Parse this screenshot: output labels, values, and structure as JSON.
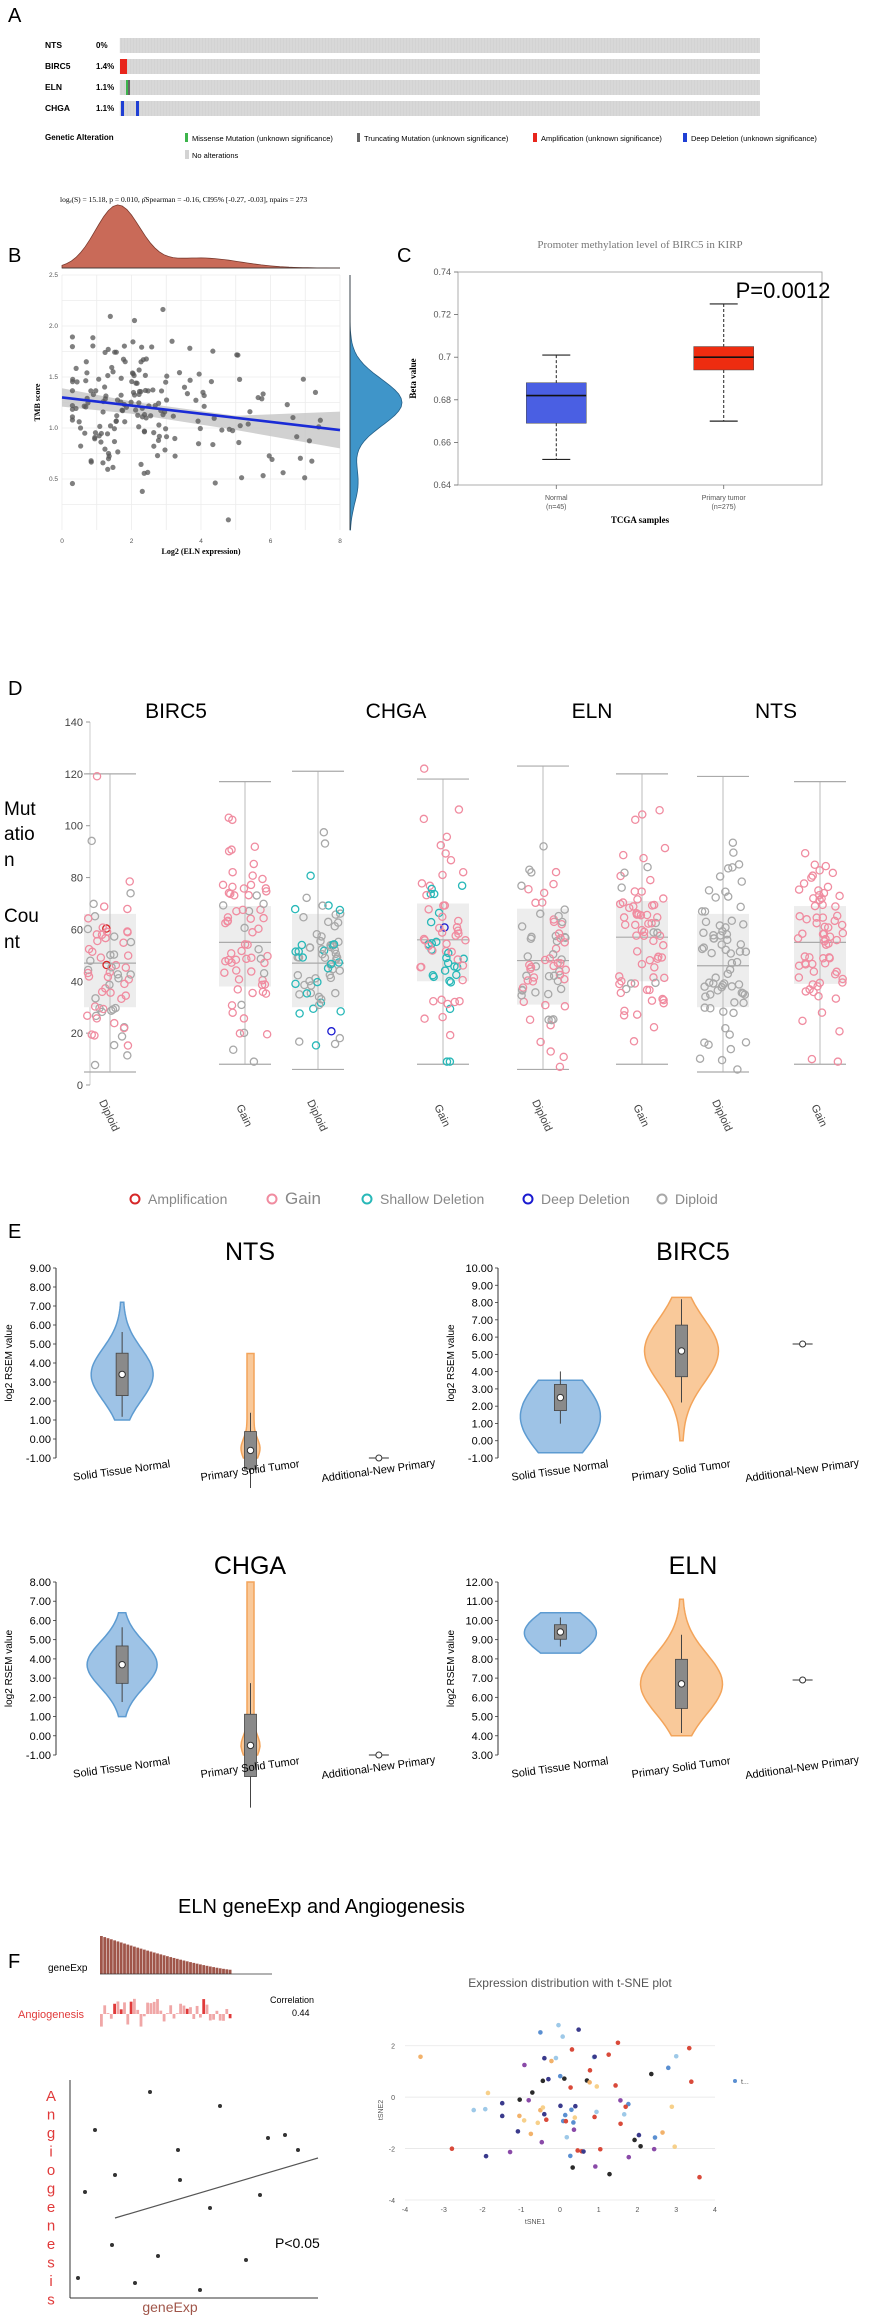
{
  "figure": {
    "panel_labels": {
      "a": "A",
      "b": "B",
      "c": "C",
      "d": "D",
      "e": "E",
      "f": "F"
    }
  },
  "panel_a": {
    "rows": [
      {
        "gene": "NTS",
        "pct": "0%"
      },
      {
        "gene": "BIRC5",
        "pct": "1.4%"
      },
      {
        "gene": "ELN",
        "pct": "1.1%"
      },
      {
        "gene": "CHGA",
        "pct": "1.1%"
      }
    ],
    "legend_title": "Genetic Alteration",
    "legend": {
      "missense": "Missense Mutation (unknown significance)",
      "truncating": "Truncating Mutation (unknown significance)",
      "amplification": "Amplification (unknown significance)",
      "deep_deletion": "Deep Deletion (unknown significance)",
      "no_alterations": "No alterations"
    },
    "colors": {
      "missense": "#3cb44b",
      "truncating": "#666666",
      "amplification": "#e8251c",
      "deep_deletion": "#1f3fd4",
      "none": "#d3d3d3"
    }
  },
  "panel_b": {
    "stats": "logₑ(S) = 15.18, p = 0.010, ρ̂Spearman = -0.16, CI95% [-0.27, -0.03], npairs = 273",
    "chart_data": {
      "type": "scatter",
      "xlabel": "Log2 (ELN expression)",
      "ylabel": "TMB score",
      "xlim": [
        0,
        8
      ],
      "ylim": [
        0,
        2.5
      ],
      "xticks": [
        "0",
        "2",
        "4",
        "6",
        "8"
      ],
      "yticks": [
        "0.5",
        "1.0",
        "1.5",
        "2.0",
        "2.5"
      ],
      "regression": {
        "x": [
          0,
          8
        ],
        "y": [
          1.3,
          0.98
        ]
      },
      "n_points": 273
    },
    "colors": {
      "points": "#555555",
      "line": "#1a2bd6",
      "band": "#c9c9c9",
      "top_density": "#c96a58",
      "right_density": "#3f95c9"
    }
  },
  "panel_c": {
    "chart_data": {
      "type": "box",
      "title": "Promoter methylation level of BIRC5 in KIRP",
      "xlabel": "TCGA samples",
      "ylabel": "Beta value",
      "ylim": [
        0.64,
        0.74
      ],
      "yticks": [
        "0.64",
        "0.66",
        "0.68",
        "0.7",
        "0.72",
        "0.74"
      ],
      "groups": [
        {
          "name": "Normal",
          "n": "(n=45)",
          "min": 0.652,
          "q1": 0.669,
          "median": 0.682,
          "q3": 0.688,
          "max": 0.701,
          "color": "#4a5fe3"
        },
        {
          "name": "Primary tumor",
          "n": "(n=275)",
          "min": 0.67,
          "q1": 0.694,
          "median": 0.7,
          "q3": 0.705,
          "max": 0.725,
          "color": "#ee2c10"
        }
      ],
      "annotation": "P=0.0012"
    }
  },
  "panel_d": {
    "ylabel": "Mutation Count",
    "ylabel_lines": [
      "Mut",
      "atio",
      "n",
      "Cou",
      "nt"
    ],
    "legend": [
      "Amplification",
      "Gain",
      "Shallow Deletion",
      "Deep Deletion",
      "Diploid"
    ],
    "chart_data": {
      "type": "strip-box",
      "ylim": [
        0,
        140
      ],
      "yticks": [
        "0",
        "20",
        "40",
        "60",
        "80",
        "100",
        "120",
        "140"
      ],
      "genes": [
        {
          "name": "BIRC5",
          "groups": [
            {
              "label": "Diploid",
              "q1": 30,
              "median": 47,
              "q3": 66,
              "low": 5,
              "high": 120
            },
            {
              "label": "Gain",
              "q1": 38,
              "median": 55,
              "q3": 69,
              "low": 8,
              "high": 117
            }
          ]
        },
        {
          "name": "CHGA",
          "groups": [
            {
              "label": "Diploid",
              "q1": 30,
              "median": 47,
              "q3": 66,
              "low": 6,
              "high": 121
            },
            {
              "label": "Gain",
              "q1": 40,
              "median": 56,
              "q3": 70,
              "low": 8,
              "high": 118
            }
          ]
        },
        {
          "name": "ELN",
          "groups": [
            {
              "label": "Diploid",
              "q1": 31,
              "median": 48,
              "q3": 68,
              "low": 6,
              "high": 123
            },
            {
              "label": "Gain",
              "q1": 40,
              "median": 57,
              "q3": 71,
              "low": 8,
              "high": 120
            }
          ]
        },
        {
          "name": "NTS",
          "groups": [
            {
              "label": "Diploid",
              "q1": 30,
              "median": 46,
              "q3": 66,
              "low": 5,
              "high": 119
            },
            {
              "label": "Gain",
              "q1": 39,
              "median": 55,
              "q3": 69,
              "low": 8,
              "high": 117
            }
          ]
        }
      ]
    },
    "colors": {
      "amp": "#d62728",
      "gain": "#f08ca0",
      "shallow": "#28b8b8",
      "deep": "#1a1ad0",
      "diploid": "#a8a8a8"
    }
  },
  "panel_e": {
    "chart_data": [
      {
        "type": "violin",
        "title": "NTS",
        "ylabel": "log2 RSEM value",
        "ylim": [
          -1,
          9
        ],
        "yticks": [
          "-1.00",
          "0.00",
          "1.00",
          "2.00",
          "3.00",
          "4.00",
          "5.00",
          "6.00",
          "7.00",
          "8.00",
          "9.00"
        ],
        "categories": [
          "Solid Tissue Normal",
          "Primary Solid Tumor",
          "Additional-New Primary"
        ],
        "medians": [
          3.4,
          -0.9,
          -1.0
        ]
      },
      {
        "type": "violin",
        "title": "BIRC5",
        "ylabel": "log2 RSEM value",
        "ylim": [
          -1,
          10
        ],
        "yticks": [
          "-1.00",
          "0.00",
          "1.00",
          "2.00",
          "3.00",
          "4.00",
          "5.00",
          "6.00",
          "7.00",
          "8.00",
          "9.00",
          "10.00"
        ],
        "categories": [
          "Solid Tissue Normal",
          "Primary Solid Tumor",
          "Additional-New Primary"
        ],
        "medians": [
          2.5,
          5.2,
          5.6
        ]
      },
      {
        "type": "violin",
        "title": "CHGA",
        "ylabel": "log2 RSEM value",
        "ylim": [
          -1,
          8
        ],
        "yticks": [
          "-1.00",
          "0.00",
          "1.00",
          "2.00",
          "3.00",
          "4.00",
          "5.00",
          "6.00",
          "7.00",
          "8.00"
        ],
        "categories": [
          "Solid Tissue Normal",
          "Primary Solid Tumor",
          "Additional-New Primary"
        ],
        "medians": [
          3.7,
          -0.7,
          -1.0
        ]
      },
      {
        "type": "violin",
        "title": "ELN",
        "ylabel": "log2 RSEM value",
        "ylim": [
          3,
          12
        ],
        "yticks": [
          "3.00",
          "4.00",
          "5.00",
          "6.00",
          "7.00",
          "8.00",
          "9.00",
          "10.00",
          "11.00",
          "12.00"
        ],
        "categories": [
          "Solid Tissue Normal",
          "Primary Solid Tumor",
          "Additional-New Primary"
        ],
        "medians": [
          9.4,
          6.7,
          6.9
        ]
      }
    ],
    "colors": {
      "normal": "#5d9bd1",
      "tumor": "#f3a45a",
      "normal_fill": "#9ec3e6",
      "tumor_fill": "#f9c99a"
    }
  },
  "panel_f": {
    "title": "ELN geneExp and Angiogenesis",
    "bar_label_1": "geneExp",
    "bar_label_2": "Angiogenesis",
    "correlation_label": "Correlation",
    "correlation_value": "0.44",
    "ylabel_letters": [
      "A",
      "n",
      "g",
      "i",
      "o",
      "g",
      "e",
      "n",
      "e",
      "s",
      "i",
      "s"
    ],
    "xlabel": "geneExp",
    "pvalue": "P<0.05",
    "tsne_title": "Expression distribution with t-SNE plot",
    "tsne_xlabel": "tSNE1",
    "tsne_ylabel": "tSNE2",
    "tsne_legend": "t...",
    "tsne_xticks": [
      "-4",
      "-3",
      "-2",
      "-1",
      "0",
      "1",
      "2",
      "3",
      "4"
    ],
    "tsne_yticks": [
      "2",
      "0",
      "-2",
      "-4"
    ]
  }
}
